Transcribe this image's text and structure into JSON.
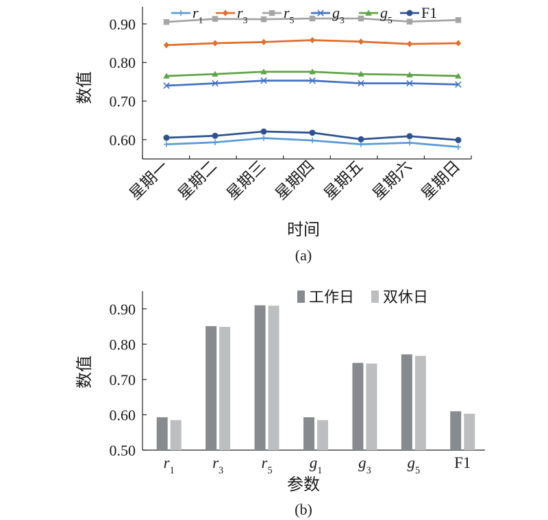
{
  "chart_data": [
    {
      "type": "line",
      "caption": "(a)",
      "xlabel": "时间",
      "ylabel": "数值",
      "categories": [
        "星期一",
        "星期二",
        "星期三",
        "星期四",
        "星期五",
        "星期六",
        "星期日"
      ],
      "ylim": [
        0.55,
        0.93
      ],
      "yticks": [
        "0.60",
        "0.70",
        "0.80",
        "0.90"
      ],
      "yticks_values": [
        0.6,
        0.7,
        0.8,
        0.9
      ],
      "grid": false,
      "legend_position": "top",
      "series": [
        {
          "name": "r",
          "sub": "1",
          "italic": true,
          "color": "#5b9bd5",
          "marker": "plus",
          "values": [
            0.588,
            0.593,
            0.604,
            0.598,
            0.588,
            0.592,
            0.581
          ]
        },
        {
          "name": "r",
          "sub": "3",
          "italic": true,
          "color": "#e07030",
          "marker": "diamond",
          "values": [
            0.845,
            0.85,
            0.853,
            0.858,
            0.854,
            0.848,
            0.85
          ]
        },
        {
          "name": "r",
          "sub": "5",
          "italic": true,
          "color": "#a5a5a5",
          "marker": "square",
          "values": [
            0.905,
            0.913,
            0.912,
            0.914,
            0.914,
            0.906,
            0.91
          ]
        },
        {
          "name": "g",
          "sub": "3",
          "italic": true,
          "color": "#4472c4",
          "marker": "x",
          "values": [
            0.74,
            0.746,
            0.753,
            0.753,
            0.746,
            0.746,
            0.743
          ]
        },
        {
          "name": "g",
          "sub": "5",
          "italic": true,
          "color": "#5fa347",
          "marker": "triangle",
          "values": [
            0.765,
            0.77,
            0.776,
            0.776,
            0.77,
            0.768,
            0.765
          ]
        },
        {
          "name": "F1",
          "sub": "",
          "italic": false,
          "color": "#2f528f",
          "marker": "circle",
          "values": [
            0.605,
            0.61,
            0.621,
            0.618,
            0.601,
            0.609,
            0.599
          ]
        }
      ]
    },
    {
      "type": "bar",
      "caption": "(b)",
      "xlabel": "参数",
      "ylabel": "数值",
      "categories": [
        {
          "name": "r",
          "sub": "1",
          "italic": true
        },
        {
          "name": "r",
          "sub": "3",
          "italic": true
        },
        {
          "name": "r",
          "sub": "5",
          "italic": true
        },
        {
          "name": "g",
          "sub": "1",
          "italic": true
        },
        {
          "name": "g",
          "sub": "3",
          "italic": true
        },
        {
          "name": "g",
          "sub": "5",
          "italic": true
        },
        {
          "name": "F1",
          "sub": "",
          "italic": false
        }
      ],
      "ylim": [
        0.5,
        0.95
      ],
      "yticks": [
        "0.50",
        "0.60",
        "0.70",
        "0.80",
        "0.90"
      ],
      "yticks_values": [
        0.5,
        0.6,
        0.7,
        0.8,
        0.9
      ],
      "grid": false,
      "legend_position": "top-right",
      "series": [
        {
          "name": "工作日",
          "color": "#878a8e",
          "values": [
            0.593,
            0.851,
            0.91,
            0.593,
            0.747,
            0.771,
            0.61
          ]
        },
        {
          "name": "双休日",
          "color": "#bcbec0",
          "values": [
            0.585,
            0.849,
            0.909,
            0.585,
            0.745,
            0.767,
            0.603
          ]
        }
      ]
    }
  ]
}
